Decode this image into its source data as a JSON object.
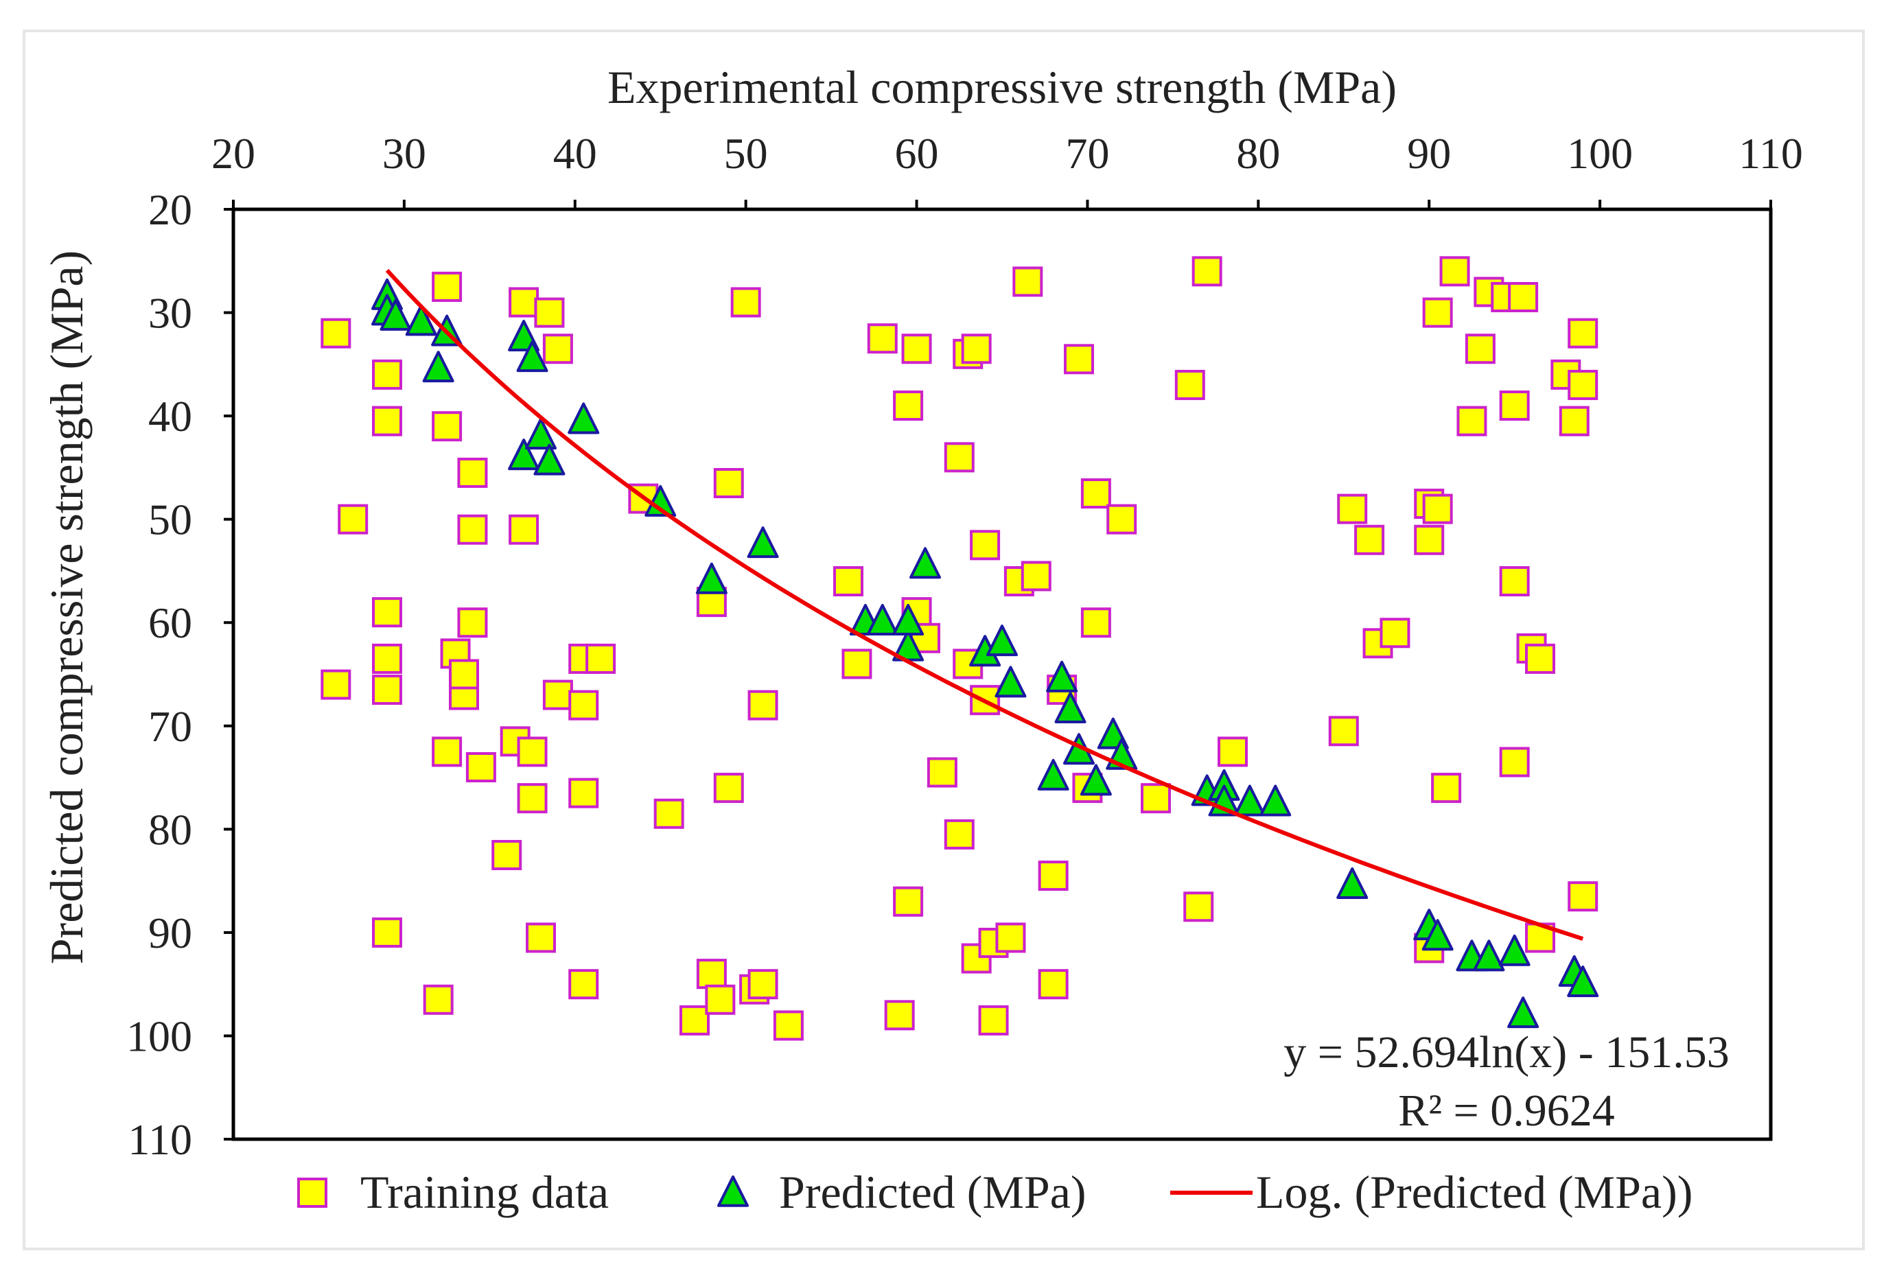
{
  "chart_data": {
    "type": "scatter",
    "xlabel": "Experimental compressive strength (MPa)",
    "ylabel": "Predicted compressive strength (MPa)",
    "xlim": [
      20,
      110
    ],
    "ylim": [
      20,
      110
    ],
    "x_ticks": [
      20,
      30,
      40,
      50,
      60,
      70,
      80,
      90,
      100,
      110
    ],
    "y_ticks": [
      20,
      30,
      40,
      50,
      60,
      70,
      80,
      90,
      100,
      110
    ],
    "x_axis_position": "top",
    "y_axis_inverted": true,
    "grid": false,
    "legend_position": "bottom",
    "colors": {
      "training_fill": "#ffff00",
      "training_stroke": "#cc22cc",
      "predicted_fill": "#00dd00",
      "predicted_stroke": "#1a1aa0",
      "trendline": "#ee0000",
      "axis": "#000000"
    },
    "series": [
      {
        "name": "Training data",
        "marker": "square",
        "points": [
          [
            26,
            32
          ],
          [
            26,
            66
          ],
          [
            27,
            50
          ],
          [
            29,
            36
          ],
          [
            29,
            40.5
          ],
          [
            29,
            59
          ],
          [
            29,
            63.5
          ],
          [
            29,
            66.5
          ],
          [
            29,
            90
          ],
          [
            32.5,
            41
          ],
          [
            32.5,
            27.5
          ],
          [
            32.5,
            72.5
          ],
          [
            32,
            96.5
          ],
          [
            33,
            63
          ],
          [
            33.5,
            67
          ],
          [
            33.5,
            65
          ],
          [
            34,
            45.5
          ],
          [
            34,
            51
          ],
          [
            34,
            60
          ],
          [
            34.5,
            74
          ],
          [
            36,
            82.5
          ],
          [
            36.5,
            71.5
          ],
          [
            37,
            51
          ],
          [
            37,
            29
          ],
          [
            37.5,
            72.5
          ],
          [
            37.5,
            77
          ],
          [
            38,
            90.5
          ],
          [
            38.5,
            30
          ],
          [
            39,
            33.5
          ],
          [
            39,
            67
          ],
          [
            40.5,
            63.5
          ],
          [
            40.5,
            68
          ],
          [
            40.5,
            76.5
          ],
          [
            40.5,
            95
          ],
          [
            41.5,
            63.5
          ],
          [
            44,
            48
          ],
          [
            45.5,
            78.5
          ],
          [
            47,
            98.5
          ],
          [
            48,
            58
          ],
          [
            48,
            94
          ],
          [
            48.5,
            96.5
          ],
          [
            49,
            46.5
          ],
          [
            49,
            76
          ],
          [
            50,
            29
          ],
          [
            50.5,
            95.5
          ],
          [
            51,
            95
          ],
          [
            51,
            68
          ],
          [
            52.5,
            99
          ],
          [
            56,
            56
          ],
          [
            56.5,
            64
          ],
          [
            58,
            32.5
          ],
          [
            59,
            98
          ],
          [
            59.5,
            39
          ],
          [
            59.5,
            87
          ],
          [
            60,
            33.5
          ],
          [
            60,
            59
          ],
          [
            60.5,
            61.5
          ],
          [
            61.5,
            74.5
          ],
          [
            62.5,
            80.5
          ],
          [
            62.5,
            44
          ],
          [
            63,
            64
          ],
          [
            63,
            34
          ],
          [
            63.5,
            33.5
          ],
          [
            63.5,
            92.5
          ],
          [
            64,
            52.5
          ],
          [
            64,
            67.5
          ],
          [
            64.5,
            91
          ],
          [
            64.5,
            98.5
          ],
          [
            65.5,
            90.5
          ],
          [
            66,
            56
          ],
          [
            66.5,
            27
          ],
          [
            67,
            55.5
          ],
          [
            68,
            84.5
          ],
          [
            68,
            95
          ],
          [
            68.5,
            66.5
          ],
          [
            69.5,
            34.5
          ],
          [
            70,
            76
          ],
          [
            70.5,
            60
          ],
          [
            70.5,
            47.5
          ],
          [
            72,
            50
          ],
          [
            74,
            77
          ],
          [
            76,
            37
          ],
          [
            76.5,
            87.5
          ],
          [
            77,
            26
          ],
          [
            78.5,
            72.5
          ],
          [
            85,
            70.5
          ],
          [
            85.5,
            49
          ],
          [
            86.5,
            52
          ],
          [
            87,
            62
          ],
          [
            88,
            61
          ],
          [
            90,
            91.5
          ],
          [
            90,
            52
          ],
          [
            90,
            48.5
          ],
          [
            90.5,
            30
          ],
          [
            90.5,
            49
          ],
          [
            91,
            76
          ],
          [
            91.5,
            26
          ],
          [
            92.5,
            40.5
          ],
          [
            93,
            33.5
          ],
          [
            93.5,
            28
          ],
          [
            94.5,
            28.5
          ],
          [
            95,
            56
          ],
          [
            95,
            73.5
          ],
          [
            95,
            39
          ],
          [
            95.5,
            28.5
          ],
          [
            96,
            62.5
          ],
          [
            96.5,
            63.5
          ],
          [
            96.5,
            90.5
          ],
          [
            98,
            36
          ],
          [
            98.5,
            40.5
          ],
          [
            99,
            86.5
          ],
          [
            99,
            37
          ],
          [
            99,
            32
          ]
        ]
      },
      {
        "name": "Predicted (MPa)",
        "marker": "triangle",
        "points": [
          [
            29,
            28.5
          ],
          [
            29,
            30
          ],
          [
            29.5,
            30.5
          ],
          [
            31,
            31
          ],
          [
            32,
            35.5
          ],
          [
            32.5,
            32
          ],
          [
            37,
            32.5
          ],
          [
            37,
            44
          ],
          [
            37.5,
            34.5
          ],
          [
            38,
            42
          ],
          [
            38.5,
            44.5
          ],
          [
            40.5,
            40.5
          ],
          [
            45,
            48.5
          ],
          [
            48,
            56
          ],
          [
            51,
            52.5
          ],
          [
            57,
            60
          ],
          [
            58,
            60
          ],
          [
            59.5,
            62.5
          ],
          [
            59.5,
            60
          ],
          [
            60.5,
            54.5
          ],
          [
            64,
            63
          ],
          [
            65,
            62
          ],
          [
            65.5,
            66
          ],
          [
            68,
            75
          ],
          [
            68.5,
            65.5
          ],
          [
            69,
            68.5
          ],
          [
            69.5,
            72.5
          ],
          [
            70.5,
            75.5
          ],
          [
            71.5,
            71
          ],
          [
            72,
            73
          ],
          [
            77,
            76.5
          ],
          [
            78,
            76
          ],
          [
            78,
            77.5
          ],
          [
            79.5,
            77.5
          ],
          [
            81,
            77.5
          ],
          [
            85.5,
            85.5
          ],
          [
            90,
            89.5
          ],
          [
            90.5,
            90.5
          ],
          [
            92.5,
            92.5
          ],
          [
            93.5,
            92.5
          ],
          [
            95,
            92
          ],
          [
            95.5,
            98
          ],
          [
            98.5,
            94
          ],
          [
            99,
            95
          ]
        ]
      },
      {
        "name": "Log. (Predicted (MPa))",
        "marker": "line",
        "equation": {
          "a": 52.694,
          "b": -151.53
        },
        "x_range": [
          29,
          99
        ]
      }
    ],
    "annotation": {
      "equation": "y = 52.694ln(x) - 151.53",
      "r_squared": "R² = 0.9624"
    }
  }
}
